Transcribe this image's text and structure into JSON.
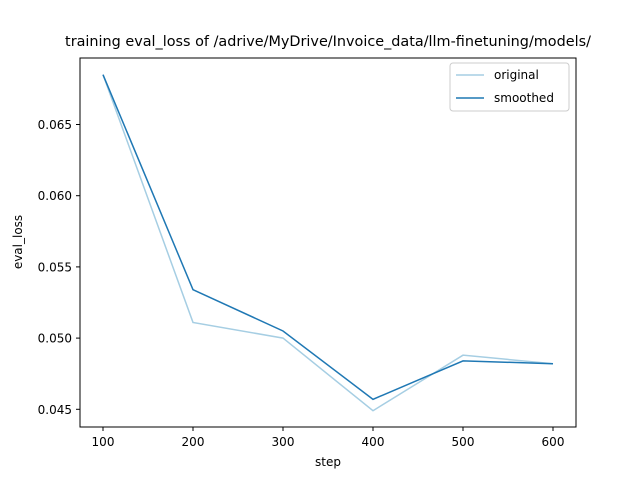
{
  "chart_data": {
    "type": "line",
    "title": "training eval_loss of /adrive/MyDrive/Invoice_data/llm-finetuning/models/",
    "xlabel": "step",
    "ylabel": "eval_loss",
    "x": [
      100,
      200,
      300,
      400,
      500,
      600
    ],
    "series": [
      {
        "name": "original",
        "color": "#a6cee3",
        "values": [
          0.0685,
          0.0511,
          0.05,
          0.0449,
          0.0488,
          0.0482
        ]
      },
      {
        "name": "smoothed",
        "color": "#1f78b4",
        "values": [
          0.0685,
          0.0534,
          0.0505,
          0.0457,
          0.0484,
          0.0482
        ]
      }
    ],
    "xticks": [
      "100",
      "200",
      "300",
      "400",
      "500",
      "600"
    ],
    "yticks": [
      "0.045",
      "0.050",
      "0.055",
      "0.060",
      "0.065"
    ],
    "xlim": [
      80,
      625
    ],
    "ylim": [
      0.0441,
      0.0694
    ],
    "grid": false,
    "legend_position": "upper right"
  }
}
